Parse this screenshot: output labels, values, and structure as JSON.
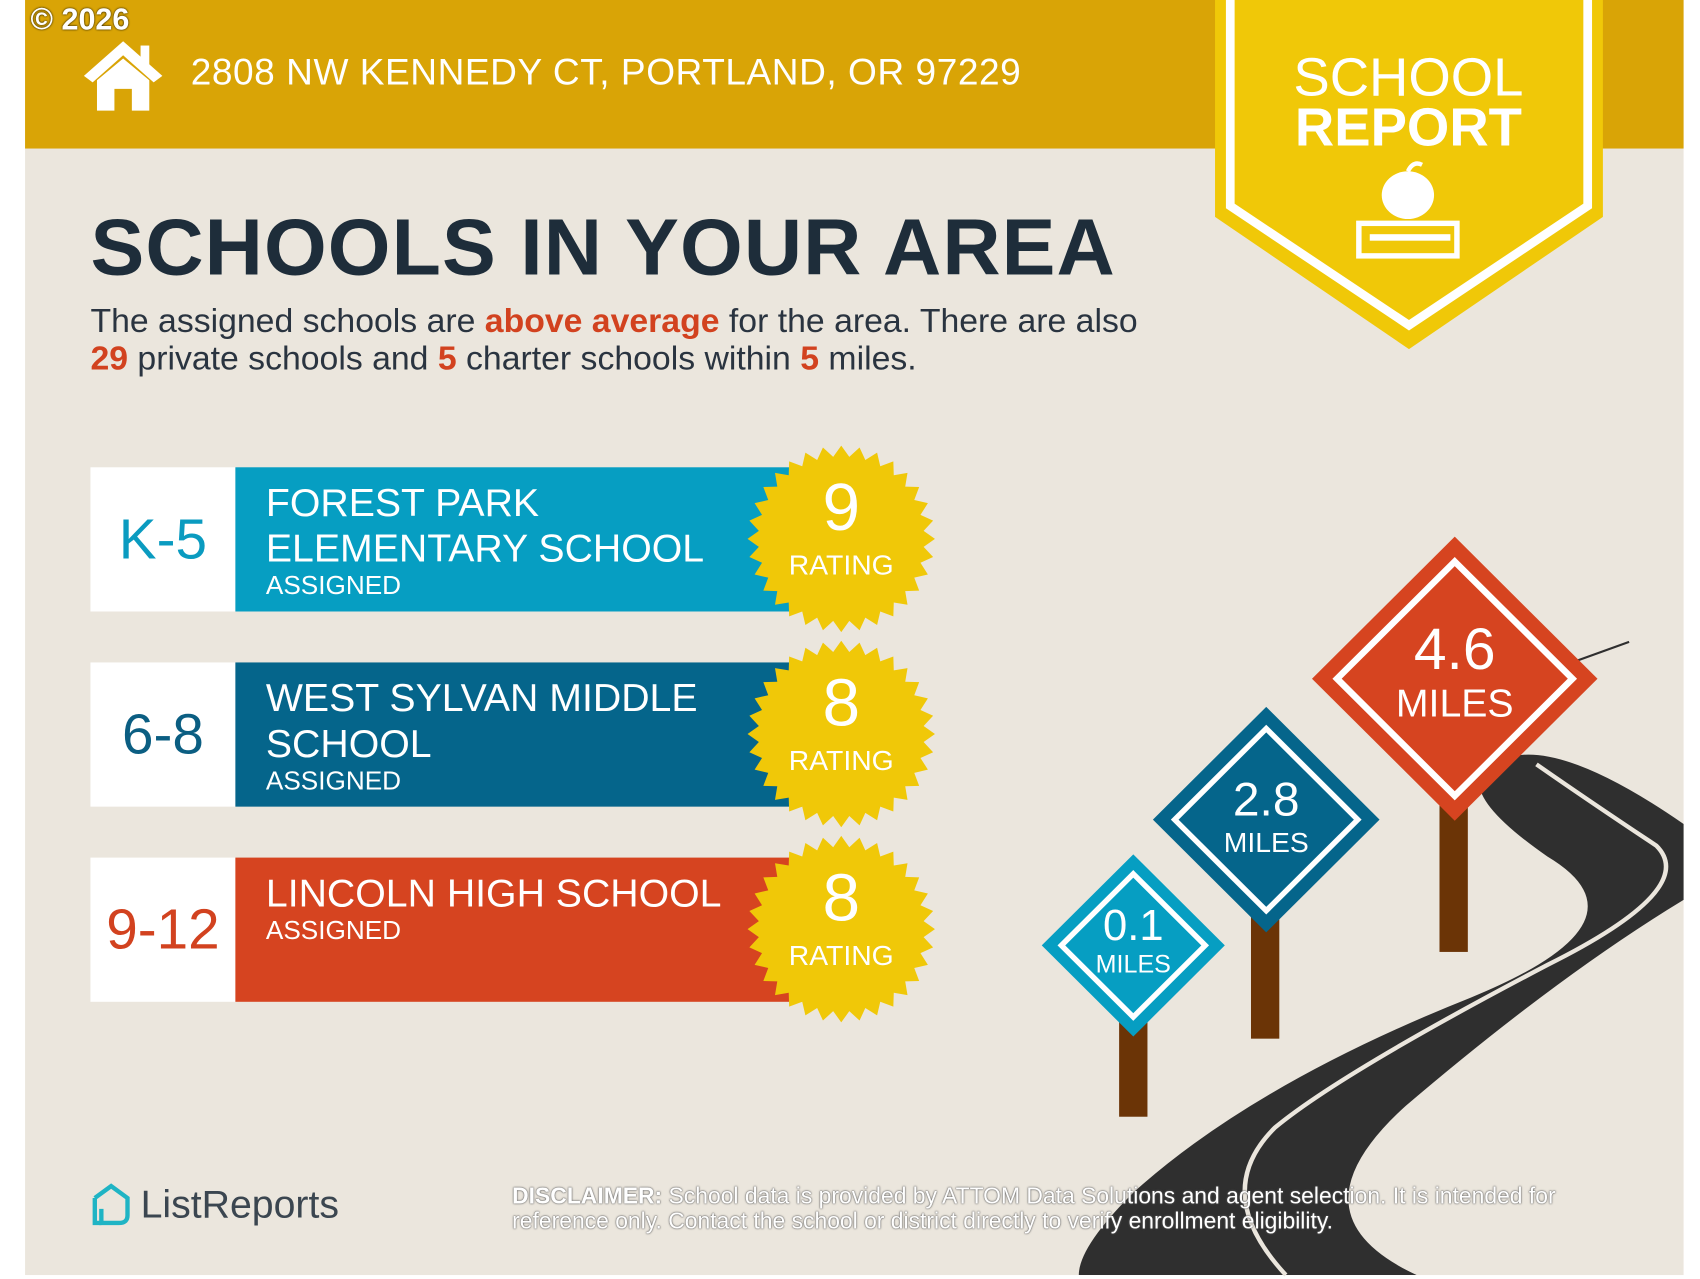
{
  "copyright": "© 2026",
  "header": {
    "address": "2808 NW KENNEDY CT, PORTLAND, OR 97229",
    "icon": "house-icon"
  },
  "badge": {
    "line1": "SCHOOL",
    "line2": "REPORT",
    "icon": "apple-on-book-icon"
  },
  "title": "SCHOOLS IN YOUR AREA",
  "intro": {
    "p1": "The assigned schools are ",
    "highlight": "above average",
    "p2": " for the area. There are also ",
    "private_count": "29",
    "p3": " private schools and ",
    "charter_count": "5",
    "p4": " charter schools within ",
    "miles": "5",
    "p5": " miles."
  },
  "schools": [
    {
      "grades": "K-5",
      "name": "FOREST PARK ELEMENTARY SCHOOL",
      "status": "ASSIGNED",
      "rating": "9",
      "rating_label": "RATING",
      "color": "#069ec2",
      "grade_color": "#0a9bc0"
    },
    {
      "grades": "6-8",
      "name": "WEST SYLVAN MIDDLE SCHOOL",
      "status": "ASSIGNED",
      "rating": "8",
      "rating_label": "RATING",
      "color": "#05658b",
      "grade_color": "#0b5e82"
    },
    {
      "grades": "9-12",
      "name": "LINCOLN HIGH SCHOOL",
      "status": "ASSIGNED",
      "rating": "8",
      "rating_label": "RATING",
      "color": "#d64420",
      "grade_color": "#d2421f"
    }
  ],
  "distances": [
    {
      "value": "0.1",
      "unit": "MILES",
      "color": "#069ec2"
    },
    {
      "value": "2.8",
      "unit": "MILES",
      "color": "#05658b"
    },
    {
      "value": "4.6",
      "unit": "MILES",
      "color": "#d64420"
    }
  ],
  "footer": {
    "logo": "ListReports",
    "disclaimer_label": "DISCLAIMER:",
    "disclaimer": " School data is provided by ATTOM Data Solutions and agent selection. It is intended for reference only. Contact the school or district directly to verify enrollment eligibility."
  },
  "colors": {
    "gold": "#d9a406",
    "yellow": "#f0c808",
    "background": "#ebe6dd",
    "accent": "#d2421f"
  }
}
